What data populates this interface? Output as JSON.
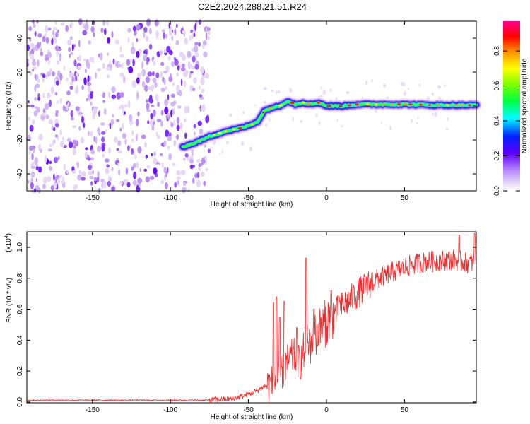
{
  "title": "C2E2.2024.288.21.51.R24",
  "chart_data": [
    {
      "type": "heatmap",
      "xlabel": "Height of straight line (km)",
      "ylabel": "Frequency (Hz)",
      "xlim": [
        -192,
        96
      ],
      "ylim": [
        -50,
        50
      ],
      "xticks": [
        -150,
        -100,
        -50,
        0,
        50
      ],
      "yticks": [
        -40,
        -20,
        0,
        20,
        40
      ],
      "xtick_labels": [
        "-150",
        "-100",
        "-50",
        "0",
        "50"
      ],
      "ytick_labels": [
        "-40",
        "-20",
        "0",
        "20",
        "40"
      ],
      "noise_region_x": [
        -192,
        -75
      ],
      "ridge": {
        "x": [
          -92,
          -85,
          -75,
          -65,
          -55,
          -48,
          -44,
          -40,
          -35,
          -30,
          -25,
          -20,
          -15,
          -10,
          -5,
          0,
          10,
          20,
          30,
          50,
          70,
          95
        ],
        "y": [
          -24,
          -22,
          -18,
          -15,
          -13,
          -11,
          -9,
          -3,
          -1,
          0,
          3,
          1,
          2,
          1,
          2,
          0,
          0,
          1,
          1,
          1,
          0.5,
          0.5
        ]
      },
      "colorbar": {
        "label": "Normalized spectral amplitude",
        "ticks": [
          "0.0",
          "0.2",
          "0.4",
          "0.6",
          "0.8"
        ],
        "tick_values": [
          0.0,
          0.2,
          0.4,
          0.6,
          0.8
        ],
        "range": [
          0,
          0.97
        ]
      }
    },
    {
      "type": "line",
      "xlabel": "Height of straight line (km)",
      "ylabel": "SNR (10 * v/v)",
      "multiplier": "(x10",
      "multiplier_exp": "4",
      "xlim": [
        -192,
        96
      ],
      "ylim": [
        -0.005,
        1.1
      ],
      "xticks": [
        -150,
        -100,
        -50,
        0,
        50
      ],
      "yticks": [
        0.0,
        0.2,
        0.4,
        0.6,
        0.8,
        1.0
      ],
      "xtick_labels": [
        "-150",
        "-100",
        "-50",
        "0",
        "50"
      ],
      "ytick_labels": [
        "0.0",
        "0.2",
        "0.4",
        "0.6",
        "0.8",
        "1.0"
      ],
      "color": "#e83030",
      "envelope": {
        "x": [
          -192,
          -75,
          -60,
          -50,
          -45,
          -40,
          -35,
          -31,
          -28,
          -24,
          -20,
          -17,
          -14,
          -10,
          -5,
          0,
          10,
          20,
          30,
          40,
          50,
          60,
          70,
          80,
          90,
          96
        ],
        "y": [
          0.012,
          0.012,
          0.02,
          0.05,
          0.07,
          0.1,
          0.12,
          0.15,
          0.2,
          0.28,
          0.3,
          0.25,
          0.32,
          0.4,
          0.45,
          0.52,
          0.62,
          0.7,
          0.78,
          0.83,
          0.87,
          0.9,
          0.91,
          0.92,
          0.9,
          0.9
        ]
      },
      "spikes": [
        {
          "x": -34,
          "y": 0.64
        },
        {
          "x": -32,
          "y": 0.68
        },
        {
          "x": -30,
          "y": 0.55
        },
        {
          "x": -27,
          "y": 0.65
        },
        {
          "x": -19,
          "y": 0.48
        },
        {
          "x": -13,
          "y": 0.93
        },
        {
          "x": -8,
          "y": 0.6
        },
        {
          "x": 3,
          "y": 0.72
        },
        {
          "x": 8,
          "y": 0.68
        },
        {
          "x": 85,
          "y": 1.08
        },
        {
          "x": 95,
          "y": 1.09
        }
      ]
    }
  ]
}
